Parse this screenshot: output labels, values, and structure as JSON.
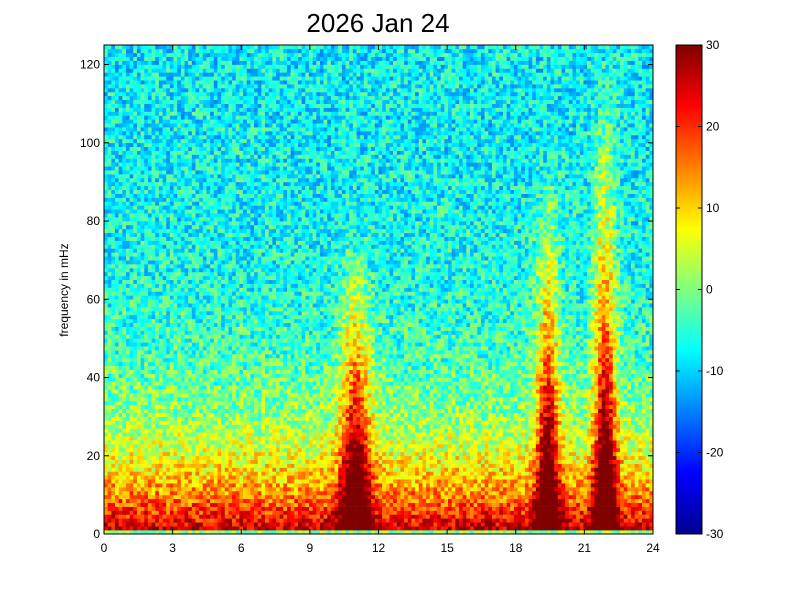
{
  "chart_data": {
    "type": "heatmap",
    "title": "2026 Jan 24",
    "xlabel": "",
    "ylabel": "frequency in mHz",
    "xlim": [
      0,
      24
    ],
    "ylim": [
      0,
      125
    ],
    "x_ticks": [
      "0",
      "3",
      "6",
      "9",
      "12",
      "15",
      "18",
      "21",
      "24"
    ],
    "x_tick_values": [
      0,
      3,
      6,
      9,
      12,
      15,
      18,
      21,
      24
    ],
    "y_ticks": [
      "0",
      "20",
      "40",
      "60",
      "80",
      "100",
      "120"
    ],
    "y_tick_values": [
      0,
      20,
      40,
      60,
      80,
      100,
      120
    ],
    "colorbar": {
      "colormap": "jet",
      "clim": [
        -30,
        30
      ],
      "ticks": [
        "30",
        "20",
        "10",
        "0",
        "-10",
        "-20",
        "-30"
      ],
      "tick_values": [
        30,
        20,
        10,
        0,
        -10,
        -20,
        -30
      ]
    },
    "grid": false,
    "z_description_units": "dB",
    "features": [
      {
        "kind": "broadband-burst",
        "x_center": 11.0,
        "x_width": 0.9,
        "peak_freq": 80,
        "intensity": 30
      },
      {
        "kind": "broadband-burst",
        "x_center": 19.4,
        "x_width": 0.7,
        "peak_freq": 100,
        "intensity": 30
      },
      {
        "kind": "broadband-burst",
        "x_center": 21.9,
        "x_width": 0.7,
        "peak_freq": 125,
        "intensity": 30
      }
    ],
    "background_low_freq_level": 28,
    "background_high_freq_level": -8
  }
}
